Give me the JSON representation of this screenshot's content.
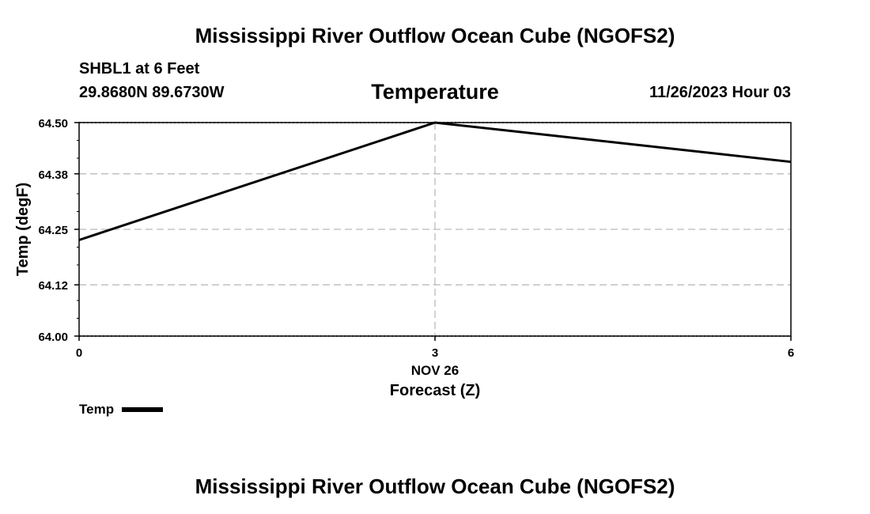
{
  "header": {
    "title": "Mississippi River Outflow Ocean Cube (NGOFS2)",
    "station": "SHBL1 at 6 Feet",
    "coords": "29.8680N  89.6730W",
    "subtitle": "Temperature",
    "datetime": "11/26/2023 Hour 03"
  },
  "footer": {
    "title": "Mississippi River Outflow Ocean Cube (NGOFS2)"
  },
  "chart_data": {
    "type": "line",
    "title": "Temperature",
    "xlabel": "Forecast (Z)",
    "date_label": "NOV 26",
    "ylabel": "Temp (degF)",
    "x_ticks": [
      0,
      3,
      6
    ],
    "y_ticks": [
      "64.00",
      "64.12",
      "64.25",
      "64.38",
      "64.50"
    ],
    "xlim": [
      0,
      6
    ],
    "ylim": [
      64.0,
      64.5
    ],
    "series": [
      {
        "name": "Temp",
        "x": [
          0,
          3,
          6
        ],
        "values": [
          64.225,
          64.5,
          64.408
        ]
      }
    ],
    "legend": [
      {
        "label": "Temp",
        "color": "#000000"
      }
    ],
    "line_color": "#000000",
    "grid_color": "#bbbbbb"
  }
}
